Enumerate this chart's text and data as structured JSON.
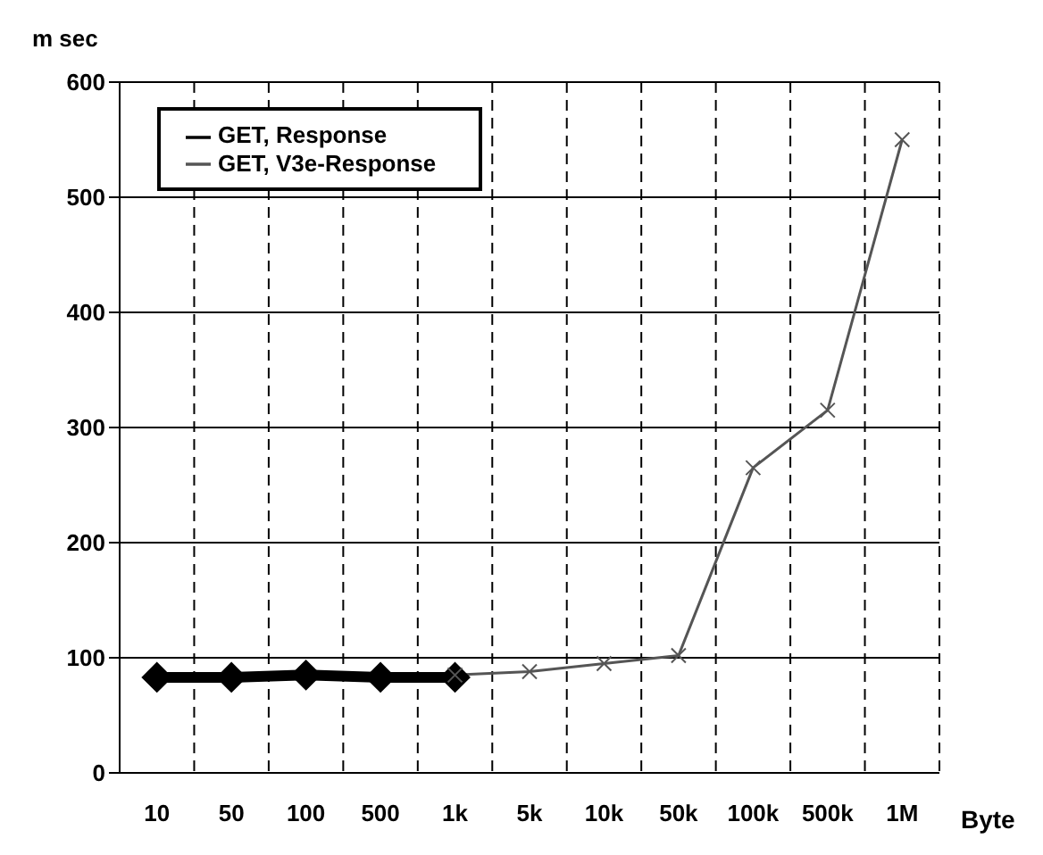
{
  "chart_data": {
    "type": "line",
    "xlabel": "Byte",
    "ylabel": "m sec",
    "categories": [
      "10",
      "50",
      "100",
      "500",
      "1k",
      "5k",
      "10k",
      "50k",
      "100k",
      "500k",
      "1M"
    ],
    "series": [
      {
        "name": "GET, Response",
        "color": "#000000",
        "marker": "diamond",
        "values": [
          83,
          83,
          85,
          83,
          83,
          null,
          null,
          null,
          null,
          null,
          null
        ]
      },
      {
        "name": "GET, V3e-Response",
        "color": "#555555",
        "marker": "cross",
        "values": [
          null,
          null,
          null,
          null,
          85,
          88,
          95,
          102,
          265,
          315,
          550
        ]
      }
    ],
    "ylim": [
      0,
      600
    ],
    "yticks": [
      0,
      100,
      200,
      300,
      400,
      500,
      600
    ],
    "grid": true,
    "legend": "top left"
  }
}
